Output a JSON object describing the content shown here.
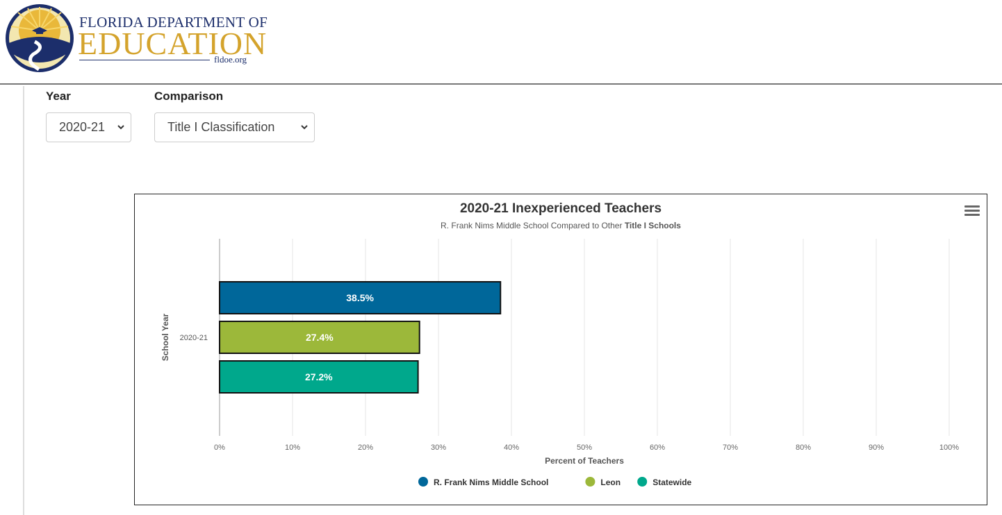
{
  "brand": {
    "line1": "FLORIDA DEPARTMENT OF",
    "line2": "EDUCATION",
    "domain": "fldoe.org",
    "colors": {
      "navy": "#1c2e6b",
      "gold": "#d4a32c"
    }
  },
  "filters": {
    "year_label": "Year",
    "year_value": "2020-21",
    "comparison_label": "Comparison",
    "comparison_value": "Title I Classification"
  },
  "chart_menu_icon": "hamburger-menu-icon",
  "chart_data": {
    "type": "bar",
    "orientation": "horizontal",
    "title": "2020-21 Inexperienced Teachers",
    "subtitle_prefix": "R. Frank Nims Middle School Compared to Other ",
    "subtitle_bold": "Title I Schools",
    "xlabel": "Percent of Teachers",
    "ylabel": "School Year",
    "categories": [
      "2020-21"
    ],
    "xlim": [
      0,
      100
    ],
    "x_ticks": [
      "0%",
      "10%",
      "20%",
      "30%",
      "40%",
      "50%",
      "60%",
      "70%",
      "80%",
      "90%",
      "100%"
    ],
    "grid": true,
    "legend_position": "bottom",
    "series": [
      {
        "name": "R. Frank Nims Middle School",
        "values": [
          38.5
        ],
        "label": "38.5%",
        "color": "#00679a"
      },
      {
        "name": "Leon",
        "values": [
          27.4
        ],
        "label": "27.4%",
        "color": "#9cb83a"
      },
      {
        "name": "Statewide",
        "values": [
          27.2
        ],
        "label": "27.2%",
        "color": "#00a88c"
      }
    ]
  }
}
